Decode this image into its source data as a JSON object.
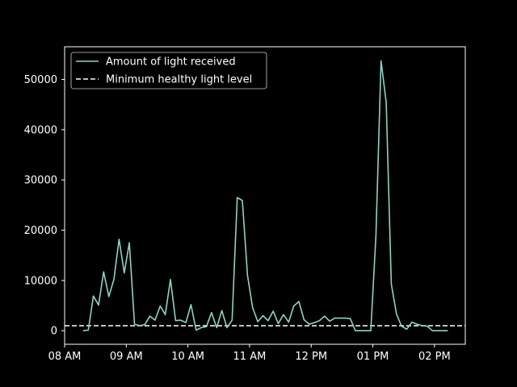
{
  "chart_data": {
    "type": "line",
    "title": "",
    "xlabel": "",
    "ylabel": "",
    "x_range": [
      "08:00",
      "14:30"
    ],
    "ylim": [
      -2700,
      56500
    ],
    "xticks": [
      {
        "label": "08 AM",
        "time": "08:00"
      },
      {
        "label": "09 AM",
        "time": "09:00"
      },
      {
        "label": "10 AM",
        "time": "10:00"
      },
      {
        "label": "11 AM",
        "time": "11:00"
      },
      {
        "label": "12 PM",
        "time": "12:00"
      },
      {
        "label": "01 PM",
        "time": "13:00"
      },
      {
        "label": "02 PM",
        "time": "14:00"
      }
    ],
    "yticks": [
      0,
      10000,
      20000,
      30000,
      40000,
      50000
    ],
    "grid": false,
    "legend_position": "upper-left",
    "colors": {
      "background": "#000000",
      "axes": "#ffffff",
      "series": "#8dd3c7",
      "threshold": "#ffffff"
    },
    "series": [
      {
        "name": "Amount of light received",
        "style": "solid",
        "x": [
          "08:18",
          "08:23",
          "08:28",
          "08:33",
          "08:38",
          "08:43",
          "08:48",
          "08:53",
          "08:58",
          "09:03",
          "09:08",
          "09:13",
          "09:18",
          "09:23",
          "09:28",
          "09:33",
          "09:38",
          "09:43",
          "09:48",
          "09:53",
          "09:58",
          "10:03",
          "10:08",
          "10:13",
          "10:18",
          "10:23",
          "10:28",
          "10:33",
          "10:38",
          "10:43",
          "10:48",
          "10:53",
          "10:58",
          "11:03",
          "11:08",
          "11:13",
          "11:18",
          "11:23",
          "11:28",
          "11:33",
          "11:38",
          "11:43",
          "11:48",
          "11:53",
          "11:58",
          "12:03",
          "12:08",
          "12:13",
          "12:18",
          "12:23",
          "12:28",
          "12:33",
          "12:38",
          "12:43",
          "12:48",
          "12:53",
          "12:58",
          "13:03",
          "13:08",
          "13:13",
          "13:18",
          "13:23",
          "13:28",
          "13:33",
          "13:38",
          "13:43",
          "13:48",
          "13:53",
          "13:58",
          "14:03",
          "14:08",
          "14:13"
        ],
        "y": [
          0,
          100,
          6900,
          5100,
          11700,
          6800,
          10200,
          18200,
          11500,
          17500,
          1300,
          1000,
          1200,
          2900,
          2100,
          4900,
          3200,
          10200,
          2000,
          2100,
          1600,
          5200,
          100,
          600,
          800,
          3600,
          600,
          4000,
          600,
          2100,
          26500,
          25900,
          11000,
          4600,
          1800,
          3000,
          2000,
          3900,
          1400,
          3200,
          1700,
          4900,
          5800,
          2200,
          1300,
          1600,
          2000,
          2900,
          1900,
          2500,
          2500,
          2500,
          2400,
          0,
          0,
          0,
          0,
          19000,
          53700,
          45400,
          9300,
          3300,
          900,
          300,
          1700,
          1300,
          1000,
          900,
          0,
          0,
          0,
          0
        ]
      },
      {
        "name": "Minimum healthy light level",
        "style": "dashed",
        "y_constant": 1000
      }
    ]
  }
}
